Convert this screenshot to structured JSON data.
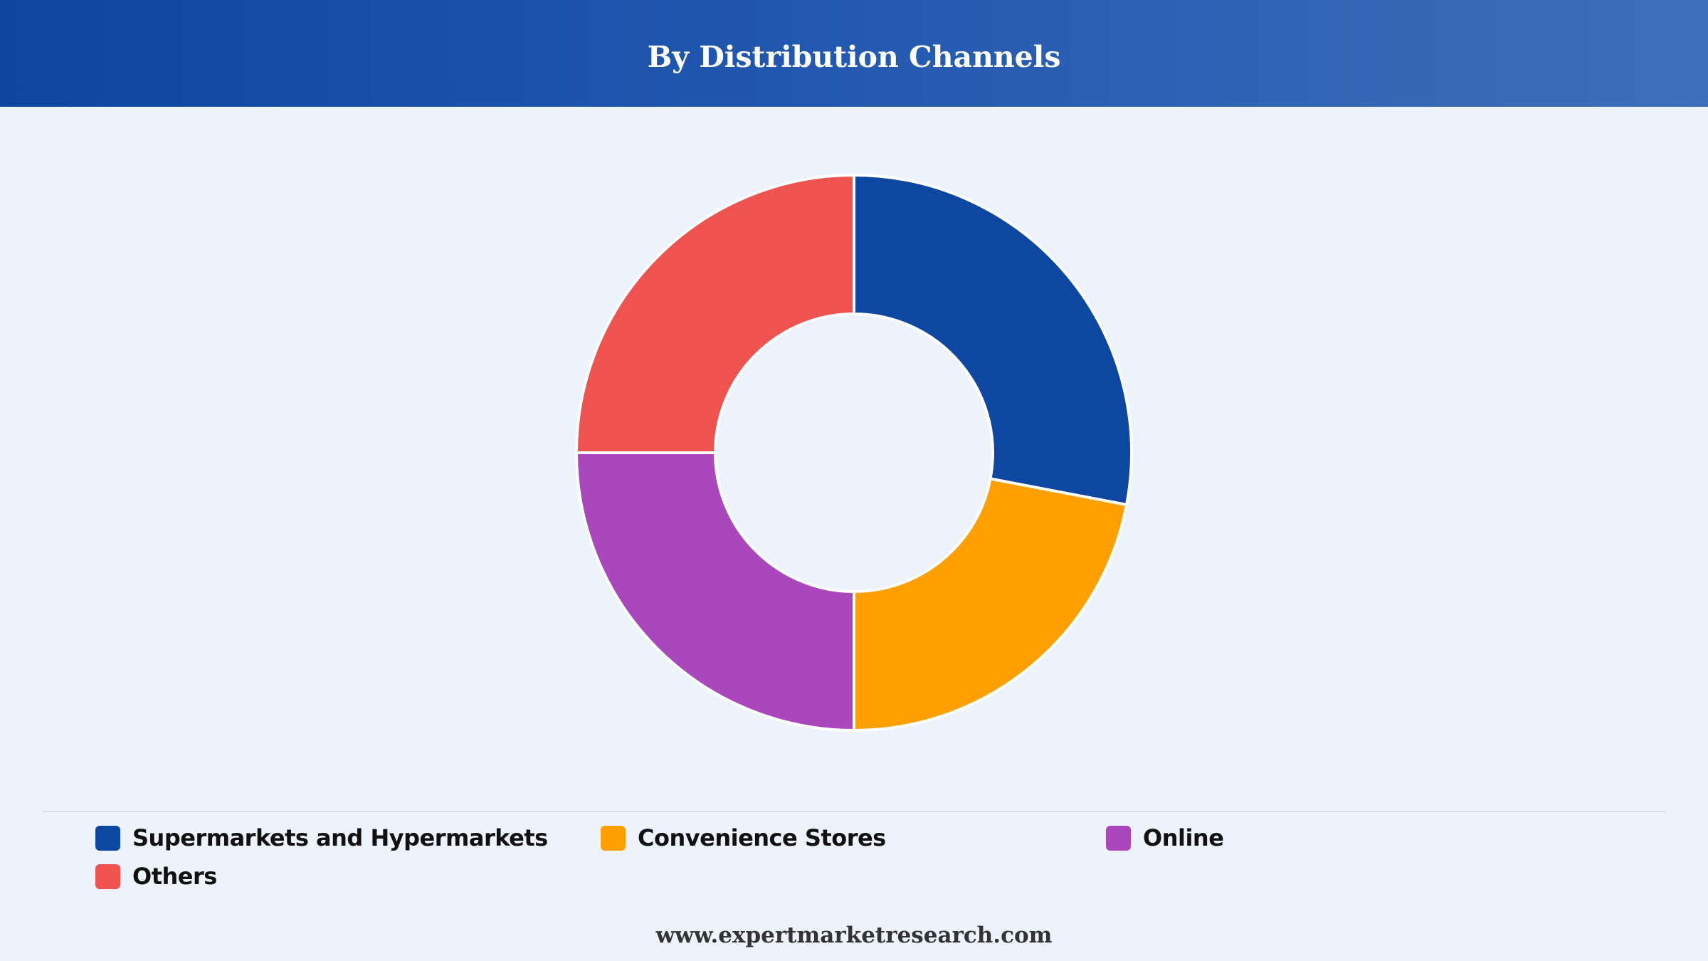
{
  "chart_data": {
    "type": "pie",
    "donut": true,
    "title": "By Distribution Channels",
    "categories": [
      "Supermarkets and Hypermarkets",
      "Convenience Stores",
      "Online",
      "Others"
    ],
    "values": [
      28,
      22,
      25,
      25
    ],
    "colors": [
      "#0d47a1",
      "#ffa000",
      "#ab47bc",
      "#ef5350"
    ],
    "legend_position": "bottom"
  },
  "legend": [
    {
      "label": "Supermarkets and Hypermarkets",
      "color": "#0d47a1"
    },
    {
      "label": "Convenience Stores",
      "color": "#ffa000"
    },
    {
      "label": "Online",
      "color": "#ab47bc"
    },
    {
      "label": "Others",
      "color": "#ef5350"
    }
  ],
  "footer": {
    "source": "www.expertmarketresearch.com"
  }
}
